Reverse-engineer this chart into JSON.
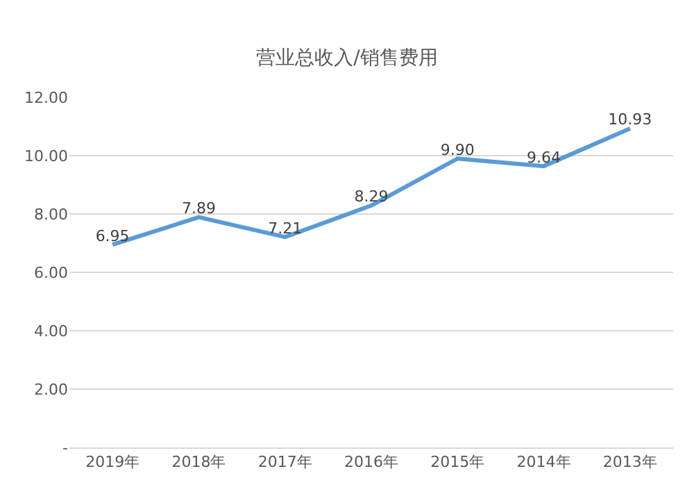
{
  "chart_data": {
    "type": "line",
    "title": "营业总收入/销售费用",
    "categories": [
      "2019年",
      "2018年",
      "2017年",
      "2016年",
      "2015年",
      "2014年",
      "2013年"
    ],
    "series": [
      {
        "color": "#5b9bd5",
        "values": [
          6.95,
          7.89,
          7.21,
          8.29,
          9.9,
          9.64,
          10.93
        ],
        "value_labels": [
          "6.95",
          "7.89",
          "7.21",
          "8.29",
          "9.90",
          "9.64",
          "10.93"
        ]
      }
    ],
    "ylim": [
      0,
      12
    ],
    "yticks": [
      {
        "value": 0,
        "label": "-"
      },
      {
        "value": 2,
        "label": "2.00"
      },
      {
        "value": 4,
        "label": "4.00"
      },
      {
        "value": 6,
        "label": "6.00"
      },
      {
        "value": 8,
        "label": "8.00"
      },
      {
        "value": 10,
        "label": "10.00"
      },
      {
        "value": 12,
        "label": "12.00"
      }
    ],
    "grid": "y",
    "marker": "none",
    "line_style": "solid",
    "legend": false
  }
}
